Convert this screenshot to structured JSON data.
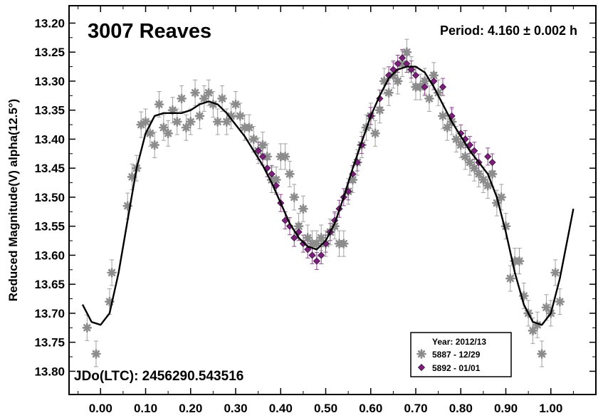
{
  "chart_data": {
    "type": "scatter",
    "title": "3007 Reaves",
    "annotation_period": "Period: 4.160 ± 0.002 h",
    "annotation_epoch": "JDo(LTC): 2456290.543516",
    "xlabel": "",
    "ylabel": "Reduced Magnitude(V) alpha(12.5°)",
    "xlim": [
      -0.07,
      1.1
    ],
    "ylim": [
      13.17,
      13.84
    ],
    "y_inverted": true,
    "x_ticks": [
      0.0,
      0.1,
      0.2,
      0.3,
      0.4,
      0.5,
      0.6,
      0.7,
      0.8,
      0.9,
      1.0
    ],
    "x_tick_labels": [
      "0.00",
      "0.10",
      "0.20",
      "0.30",
      "0.40",
      "0.50",
      "0.60",
      "0.70",
      "0.80",
      "0.90",
      "1.00"
    ],
    "y_ticks": [
      13.2,
      13.25,
      13.3,
      13.35,
      13.4,
      13.45,
      13.5,
      13.55,
      13.6,
      13.65,
      13.7,
      13.75,
      13.8
    ],
    "y_tick_labels": [
      "13.20",
      "13.25",
      "13.30",
      "13.35",
      "13.40",
      "13.45",
      "13.50",
      "13.55",
      "13.60",
      "13.65",
      "13.70",
      "13.75",
      "13.80"
    ],
    "grid": false,
    "legend_position": "bottom-right",
    "legend_title": "Year: 2012/13",
    "series": [
      {
        "name": "5887 - 12/29",
        "marker": "asterisk",
        "color": "#8c8c8c",
        "points": [
          [
            -0.03,
            13.725
          ],
          [
            -0.01,
            13.77
          ],
          [
            0.02,
            13.68
          ],
          [
            0.025,
            13.63
          ],
          [
            0.06,
            13.515
          ],
          [
            0.07,
            13.465
          ],
          [
            0.08,
            13.45
          ],
          [
            0.09,
            13.375
          ],
          [
            0.1,
            13.37
          ],
          [
            0.11,
            13.39
          ],
          [
            0.12,
            13.41
          ],
          [
            0.13,
            13.34
          ],
          [
            0.14,
            13.38
          ],
          [
            0.15,
            13.39
          ],
          [
            0.16,
            13.35
          ],
          [
            0.17,
            13.37
          ],
          [
            0.18,
            13.33
          ],
          [
            0.19,
            13.38
          ],
          [
            0.2,
            13.37
          ],
          [
            0.21,
            13.32
          ],
          [
            0.22,
            13.36
          ],
          [
            0.23,
            13.33
          ],
          [
            0.24,
            13.32
          ],
          [
            0.25,
            13.34
          ],
          [
            0.26,
            13.37
          ],
          [
            0.27,
            13.33
          ],
          [
            0.28,
            13.37
          ],
          [
            0.29,
            13.36
          ],
          [
            0.3,
            13.34
          ],
          [
            0.31,
            13.36
          ],
          [
            0.32,
            13.38
          ],
          [
            0.33,
            13.38
          ],
          [
            0.34,
            13.4
          ],
          [
            0.35,
            13.42
          ],
          [
            0.36,
            13.41
          ],
          [
            0.37,
            13.43
          ],
          [
            0.38,
            13.47
          ],
          [
            0.39,
            13.47
          ],
          [
            0.4,
            13.43
          ],
          [
            0.41,
            13.43
          ],
          [
            0.42,
            13.46
          ],
          [
            0.43,
            13.5
          ],
          [
            0.44,
            13.55
          ],
          [
            0.45,
            13.52
          ],
          [
            0.46,
            13.57
          ],
          [
            0.47,
            13.58
          ],
          [
            0.48,
            13.58
          ],
          [
            0.49,
            13.57
          ],
          [
            0.5,
            13.58
          ],
          [
            0.51,
            13.56
          ],
          [
            0.52,
            13.55
          ],
          [
            0.53,
            13.58
          ],
          [
            0.54,
            13.58
          ],
          [
            0.55,
            13.49
          ],
          [
            0.56,
            13.47
          ],
          [
            0.57,
            13.44
          ],
          [
            0.58,
            13.41
          ],
          [
            0.59,
            13.38
          ],
          [
            0.6,
            13.36
          ],
          [
            0.61,
            13.39
          ],
          [
            0.62,
            13.35
          ],
          [
            0.63,
            13.3
          ],
          [
            0.64,
            13.32
          ],
          [
            0.65,
            13.29
          ],
          [
            0.66,
            13.3
          ],
          [
            0.67,
            13.27
          ],
          [
            0.68,
            13.25
          ],
          [
            0.69,
            13.28
          ],
          [
            0.7,
            13.31
          ],
          [
            0.71,
            13.31
          ],
          [
            0.72,
            13.3
          ],
          [
            0.73,
            13.33
          ],
          [
            0.74,
            13.29
          ],
          [
            0.75,
            13.32
          ],
          [
            0.76,
            13.36
          ],
          [
            0.77,
            13.38
          ],
          [
            0.78,
            13.37
          ],
          [
            0.79,
            13.4
          ],
          [
            0.8,
            13.41
          ],
          [
            0.81,
            13.43
          ],
          [
            0.82,
            13.44
          ],
          [
            0.83,
            13.45
          ],
          [
            0.84,
            13.46
          ],
          [
            0.85,
            13.47
          ],
          [
            0.86,
            13.48
          ],
          [
            0.87,
            13.46
          ],
          [
            0.88,
            13.51
          ],
          [
            0.89,
            13.5
          ],
          [
            0.9,
            13.55
          ],
          [
            0.91,
            13.64
          ],
          [
            0.92,
            13.61
          ],
          [
            0.93,
            13.61
          ],
          [
            0.94,
            13.67
          ],
          [
            0.95,
            13.7
          ],
          [
            0.96,
            13.73
          ],
          [
            0.97,
            13.72
          ],
          [
            0.98,
            13.77
          ],
          [
            0.99,
            13.69
          ],
          [
            1.0,
            13.7
          ],
          [
            1.01,
            13.63
          ],
          [
            1.02,
            13.68
          ]
        ]
      },
      {
        "name": "5892 - 01/01",
        "marker": "diamond",
        "color": "#7a1f7a",
        "points": [
          [
            0.35,
            13.42
          ],
          [
            0.36,
            13.43
          ],
          [
            0.37,
            13.45
          ],
          [
            0.38,
            13.46
          ],
          [
            0.39,
            13.48
          ],
          [
            0.4,
            13.51
          ],
          [
            0.41,
            13.54
          ],
          [
            0.42,
            13.55
          ],
          [
            0.43,
            13.57
          ],
          [
            0.44,
            13.56
          ],
          [
            0.45,
            13.58
          ],
          [
            0.46,
            13.59
          ],
          [
            0.47,
            13.6
          ],
          [
            0.48,
            13.61
          ],
          [
            0.49,
            13.6
          ],
          [
            0.5,
            13.58
          ],
          [
            0.51,
            13.56
          ],
          [
            0.52,
            13.54
          ],
          [
            0.53,
            13.52
          ],
          [
            0.54,
            13.5
          ],
          [
            0.55,
            13.49
          ],
          [
            0.56,
            13.46
          ],
          [
            0.57,
            13.44
          ],
          [
            0.58,
            13.41
          ],
          [
            0.6,
            13.36
          ],
          [
            0.62,
            13.33
          ],
          [
            0.64,
            13.29
          ],
          [
            0.65,
            13.28
          ],
          [
            0.66,
            13.27
          ],
          [
            0.67,
            13.26
          ],
          [
            0.68,
            13.27
          ],
          [
            0.69,
            13.28
          ],
          [
            0.7,
            13.29
          ],
          [
            0.72,
            13.31
          ],
          [
            0.74,
            13.3
          ],
          [
            0.76,
            13.31
          ],
          [
            0.78,
            13.36
          ],
          [
            0.8,
            13.39
          ],
          [
            0.81,
            13.4
          ],
          [
            0.82,
            13.41
          ],
          [
            0.83,
            13.42
          ],
          [
            0.84,
            13.44
          ],
          [
            0.86,
            13.43
          ],
          [
            0.87,
            13.44
          ]
        ]
      }
    ],
    "fit_curve": [
      [
        -0.04,
        13.685
      ],
      [
        -0.02,
        13.715
      ],
      [
        0.0,
        13.72
      ],
      [
        0.02,
        13.7
      ],
      [
        0.04,
        13.63
      ],
      [
        0.06,
        13.54
      ],
      [
        0.08,
        13.45
      ],
      [
        0.1,
        13.39
      ],
      [
        0.12,
        13.36
      ],
      [
        0.14,
        13.355
      ],
      [
        0.16,
        13.355
      ],
      [
        0.18,
        13.355
      ],
      [
        0.2,
        13.35
      ],
      [
        0.22,
        13.34
      ],
      [
        0.24,
        13.335
      ],
      [
        0.26,
        13.34
      ],
      [
        0.28,
        13.355
      ],
      [
        0.3,
        13.375
      ],
      [
        0.32,
        13.395
      ],
      [
        0.34,
        13.42
      ],
      [
        0.36,
        13.445
      ],
      [
        0.38,
        13.475
      ],
      [
        0.4,
        13.51
      ],
      [
        0.42,
        13.545
      ],
      [
        0.44,
        13.57
      ],
      [
        0.46,
        13.585
      ],
      [
        0.48,
        13.59
      ],
      [
        0.5,
        13.575
      ],
      [
        0.52,
        13.545
      ],
      [
        0.54,
        13.5
      ],
      [
        0.56,
        13.45
      ],
      [
        0.58,
        13.405
      ],
      [
        0.6,
        13.36
      ],
      [
        0.62,
        13.325
      ],
      [
        0.64,
        13.295
      ],
      [
        0.66,
        13.28
      ],
      [
        0.68,
        13.275
      ],
      [
        0.7,
        13.275
      ],
      [
        0.72,
        13.285
      ],
      [
        0.74,
        13.31
      ],
      [
        0.76,
        13.34
      ],
      [
        0.78,
        13.37
      ],
      [
        0.8,
        13.395
      ],
      [
        0.82,
        13.42
      ],
      [
        0.84,
        13.44
      ],
      [
        0.86,
        13.46
      ],
      [
        0.88,
        13.5
      ],
      [
        0.9,
        13.56
      ],
      [
        0.92,
        13.63
      ],
      [
        0.94,
        13.685
      ],
      [
        0.96,
        13.715
      ],
      [
        0.98,
        13.72
      ],
      [
        1.0,
        13.7
      ],
      [
        1.02,
        13.64
      ],
      [
        1.04,
        13.56
      ],
      [
        1.05,
        13.52
      ]
    ]
  }
}
